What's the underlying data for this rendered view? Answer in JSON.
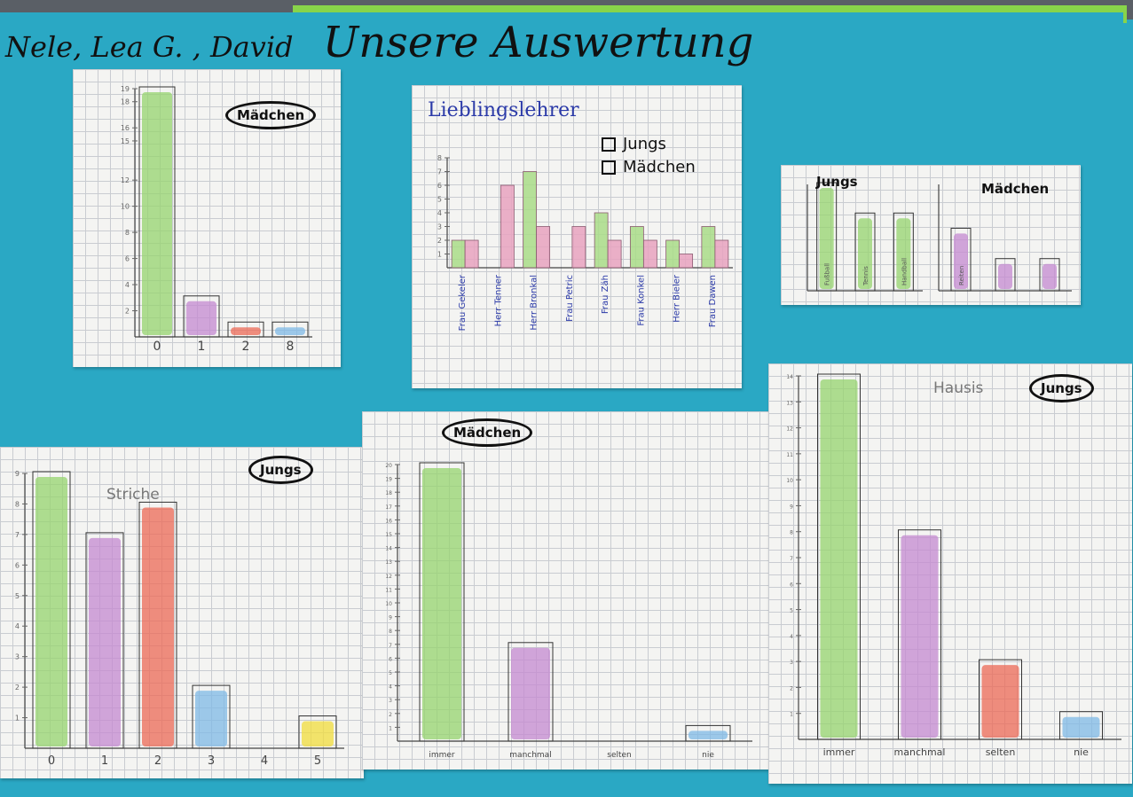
{
  "poster": {
    "names": "Nele, Lea G. , David",
    "title": "Unsere Auswertung"
  },
  "colors": {
    "green": "#96d46e",
    "purple": "#c48ad0",
    "red": "#ec6a55",
    "blue": "#7fb9e6",
    "yellow": "#f2dd3c",
    "pink": "#e39ab8"
  },
  "chart_data": [
    {
      "id": "c1",
      "type": "bar",
      "label": "Mädchen",
      "categories": [
        "0",
        "1",
        "2",
        "8"
      ],
      "values": [
        19,
        3,
        1,
        1
      ],
      "ylim": [
        0,
        19
      ],
      "yticks": [
        "2",
        "4",
        "6",
        "8",
        "10",
        "12",
        "15",
        "16",
        "18",
        "19"
      ],
      "colors": [
        "green",
        "purple",
        "red",
        "blue"
      ]
    },
    {
      "id": "c2",
      "type": "bar",
      "title": "Lieblingslehrer",
      "legend": [
        "Jungs",
        "Mädchen"
      ],
      "categories": [
        "Frau Gekeler",
        "Herr Tenner",
        "Herr Bronkal",
        "Frau Petric",
        "Frau Zäh",
        "Frau Konkel",
        "Herr Bieler",
        "Frau Dawen"
      ],
      "series": [
        {
          "name": "Jungs",
          "values": [
            2,
            0,
            7,
            0,
            4,
            3,
            2,
            3
          ]
        },
        {
          "name": "Mädchen",
          "values": [
            2,
            6,
            3,
            3,
            2,
            2,
            1,
            2
          ]
        }
      ],
      "ylim": [
        0,
        8
      ],
      "yticks": [
        "1",
        "2",
        "3",
        "4",
        "5",
        "6",
        "7",
        "8"
      ]
    },
    {
      "id": "c3a",
      "type": "bar",
      "label": "Jungs",
      "categories": [
        "Fußball",
        "Tennis",
        "Handball"
      ],
      "values": [
        7,
        5,
        5
      ],
      "ylim": [
        0,
        7
      ],
      "colors": [
        "green",
        "green",
        "green"
      ]
    },
    {
      "id": "c3b",
      "type": "bar",
      "label": "Mädchen",
      "categories": [
        "Reiten",
        "",
        ""
      ],
      "values": [
        4,
        2,
        2
      ],
      "ylim": [
        0,
        7
      ],
      "colors": [
        "purple",
        "purple",
        "purple"
      ]
    },
    {
      "id": "c4",
      "type": "bar",
      "label": "Jungs",
      "subtitle": "Striche",
      "categories": [
        "0",
        "1",
        "2",
        "3",
        "4",
        "5"
      ],
      "values": [
        9,
        7,
        8,
        2,
        0,
        1
      ],
      "ylim": [
        0,
        9
      ],
      "yticks": [
        "1",
        "2",
        "3",
        "4",
        "5",
        "6",
        "7",
        "8",
        "9"
      ],
      "colors": [
        "green",
        "purple",
        "red",
        "blue",
        "green",
        "yellow"
      ]
    },
    {
      "id": "c5",
      "type": "bar",
      "label": "Mädchen",
      "categories": [
        "immer",
        "manchmal",
        "selten",
        "nie"
      ],
      "values": [
        20,
        7,
        0,
        1
      ],
      "ylim": [
        0,
        20
      ],
      "yticks": [
        "1",
        "2",
        "3",
        "4",
        "5",
        "6",
        "7",
        "8",
        "9",
        "10",
        "11",
        "12",
        "13",
        "14",
        "15",
        "16",
        "17",
        "18",
        "19",
        "20"
      ],
      "colors": [
        "green",
        "purple",
        "red",
        "blue"
      ]
    },
    {
      "id": "c6",
      "type": "bar",
      "label": "Jungs",
      "subtitle": "Hausis",
      "categories": [
        "immer",
        "manchmal",
        "selten",
        "nie"
      ],
      "values": [
        14,
        8,
        3,
        1
      ],
      "ylim": [
        0,
        14
      ],
      "yticks": [
        "1",
        "2",
        "3",
        "4",
        "5",
        "6",
        "7",
        "8",
        "9",
        "10",
        "11",
        "12",
        "13",
        "14"
      ],
      "colors": [
        "green",
        "purple",
        "red",
        "blue"
      ]
    }
  ]
}
